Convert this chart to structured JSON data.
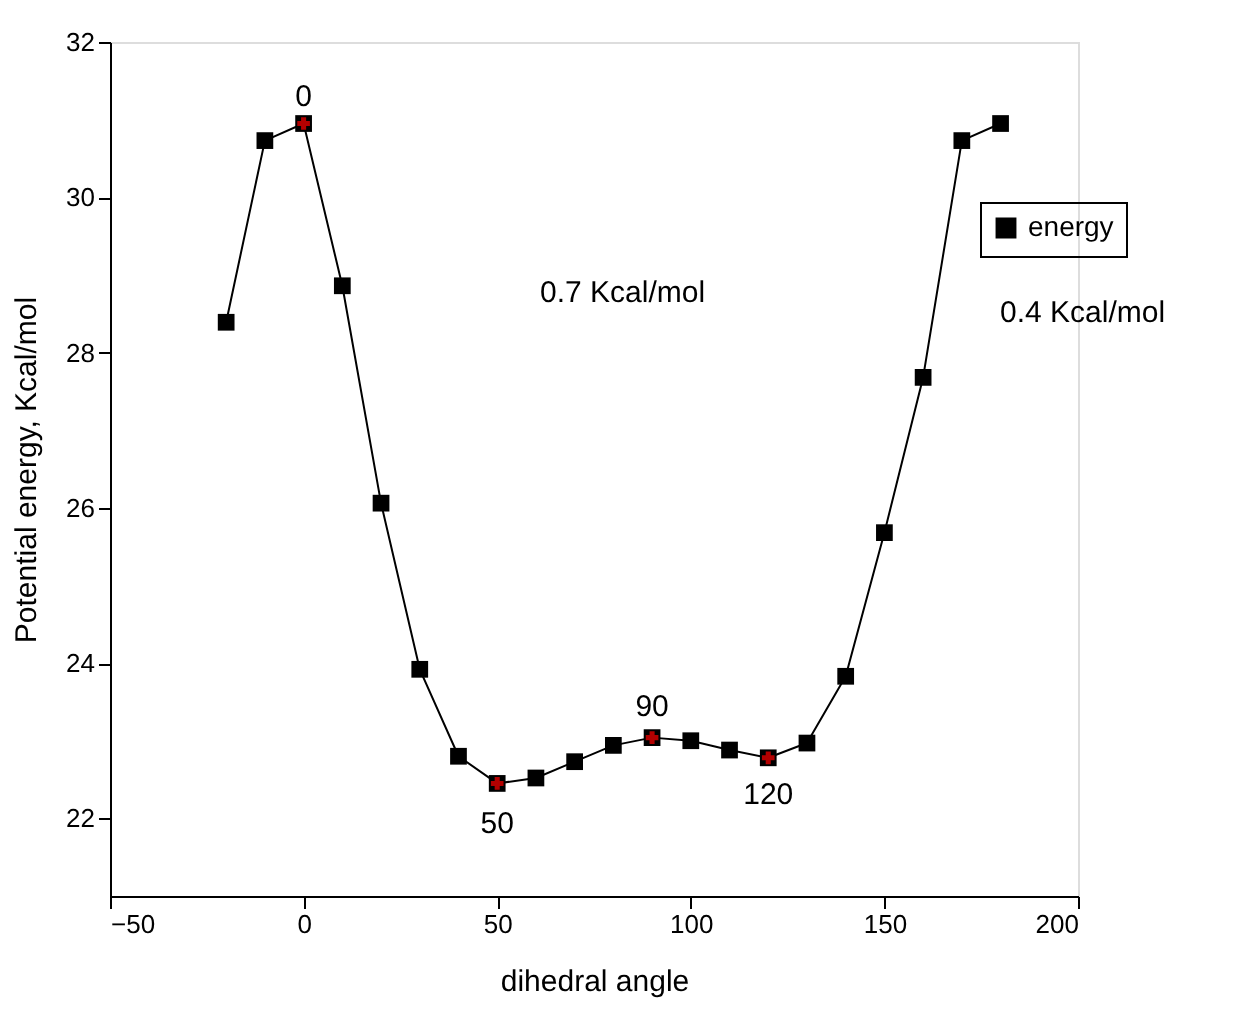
{
  "chart_data": {
    "type": "line",
    "xlabel": "dihedral angle",
    "ylabel": "Potential energy, Kcal/mol",
    "x": [
      -20,
      -10,
      0,
      10,
      20,
      30,
      40,
      50,
      60,
      70,
      80,
      90,
      100,
      110,
      120,
      130,
      140,
      150,
      160,
      170,
      180
    ],
    "series": [
      {
        "name": "energy",
        "color": "#000000",
        "values": [
          28.39,
          30.73,
          30.95,
          28.86,
          26.06,
          23.92,
          22.8,
          22.45,
          22.52,
          22.73,
          22.94,
          23.04,
          23.0,
          22.88,
          22.78,
          22.97,
          23.83,
          25.68,
          27.68,
          30.73,
          30.95
        ]
      }
    ],
    "xlim": [
      -50,
      200
    ],
    "xticks": [
      -50,
      0,
      50,
      100,
      150,
      200
    ],
    "ylim": [
      21,
      32
    ],
    "yticks": [
      22,
      24,
      26,
      28,
      30,
      32
    ],
    "marker": "square",
    "line_style": "solid",
    "grid": false,
    "legend": "top right",
    "annotations": [
      {
        "text": "0",
        "x": 0,
        "y": 30.95
      },
      {
        "text": "50",
        "x": 50,
        "y": 22.45
      },
      {
        "text": "90",
        "x": 90,
        "y": 23.04
      },
      {
        "text": "120",
        "x": 120,
        "y": 22.78
      },
      "0.7 Kcal/mol",
      "0.4 Kcal/mol"
    ]
  }
}
